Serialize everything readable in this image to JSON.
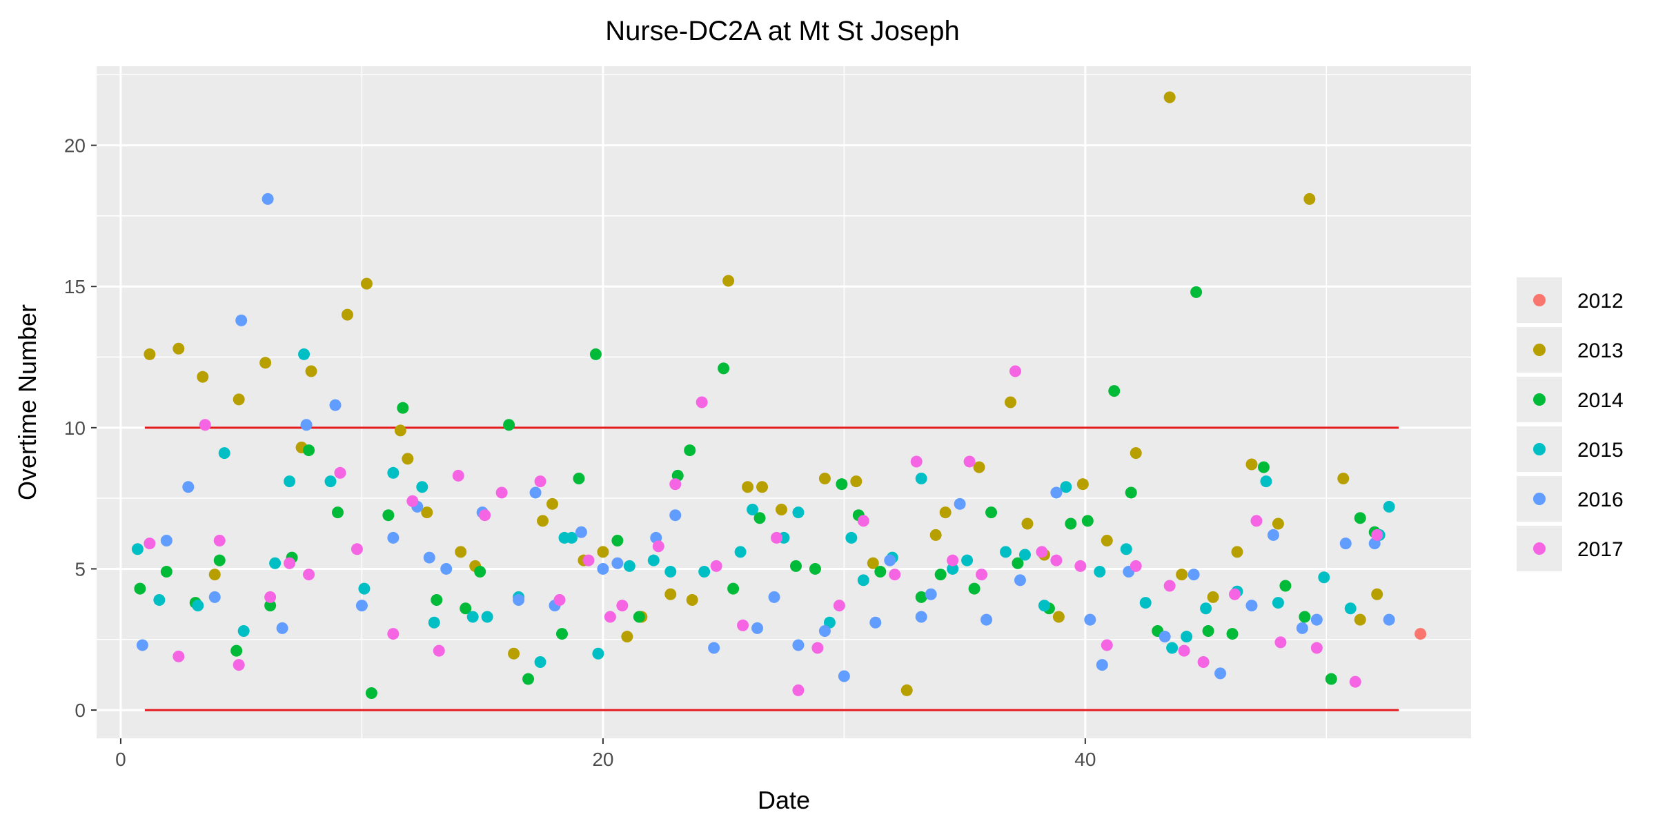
{
  "chart_data": {
    "type": "scatter",
    "title": "Nurse-DC2A at Mt St Joseph",
    "xlabel": "Date",
    "ylabel": "Overtime Number",
    "xlim": [
      -1,
      56
    ],
    "ylim": [
      -1,
      22.8
    ],
    "xticks": [
      0,
      20,
      40
    ],
    "yticks": [
      0,
      5,
      10,
      15,
      20
    ],
    "grid": true,
    "legend_position": "right",
    "control_limits": [
      {
        "y": 10,
        "x_start": 1,
        "x_end": 53,
        "color": "#e41a1c"
      },
      {
        "y": 0,
        "x_start": 1,
        "x_end": 53,
        "color": "#e41a1c"
      }
    ],
    "series": [
      {
        "name": "2012",
        "color": "#F8766D",
        "points": [
          [
            53.9,
            2.7
          ]
        ]
      },
      {
        "name": "2013",
        "color": "#B79F00",
        "points": [
          [
            1.2,
            12.6
          ],
          [
            2.4,
            12.8
          ],
          [
            3.4,
            11.8
          ],
          [
            3.9,
            4.8
          ],
          [
            4.9,
            11.0
          ],
          [
            6.0,
            12.3
          ],
          [
            7.5,
            9.3
          ],
          [
            7.9,
            12.0
          ],
          [
            9.4,
            14.0
          ],
          [
            10.2,
            15.1
          ],
          [
            11.6,
            9.9
          ],
          [
            11.9,
            8.9
          ],
          [
            12.7,
            7.0
          ],
          [
            14.1,
            5.6
          ],
          [
            14.7,
            5.1
          ],
          [
            16.3,
            2.0
          ],
          [
            17.5,
            6.7
          ],
          [
            17.9,
            7.3
          ],
          [
            19.2,
            5.3
          ],
          [
            20.0,
            5.6
          ],
          [
            21.0,
            2.6
          ],
          [
            21.6,
            3.3
          ],
          [
            22.8,
            4.1
          ],
          [
            23.7,
            3.9
          ],
          [
            25.2,
            15.2
          ],
          [
            26.0,
            7.9
          ],
          [
            26.6,
            7.9
          ],
          [
            27.4,
            7.1
          ],
          [
            29.2,
            8.2
          ],
          [
            30.5,
            8.1
          ],
          [
            31.2,
            5.2
          ],
          [
            32.6,
            0.7
          ],
          [
            33.8,
            6.2
          ],
          [
            34.2,
            7.0
          ],
          [
            35.6,
            8.6
          ],
          [
            36.9,
            10.9
          ],
          [
            37.6,
            6.6
          ],
          [
            38.3,
            5.5
          ],
          [
            38.9,
            3.3
          ],
          [
            39.9,
            8.0
          ],
          [
            40.9,
            6.0
          ],
          [
            42.1,
            9.1
          ],
          [
            43.5,
            21.7
          ],
          [
            44.0,
            4.8
          ],
          [
            45.3,
            4.0
          ],
          [
            46.3,
            5.6
          ],
          [
            46.9,
            8.7
          ],
          [
            48.0,
            6.6
          ],
          [
            49.3,
            18.1
          ],
          [
            50.7,
            8.2
          ],
          [
            51.4,
            3.2
          ],
          [
            52.1,
            4.1
          ]
        ]
      },
      {
        "name": "2014",
        "color": "#00BA38",
        "points": [
          [
            0.8,
            4.3
          ],
          [
            1.9,
            4.9
          ],
          [
            3.1,
            3.8
          ],
          [
            4.1,
            5.3
          ],
          [
            4.8,
            2.1
          ],
          [
            6.2,
            3.7
          ],
          [
            7.1,
            5.4
          ],
          [
            7.8,
            9.2
          ],
          [
            9.0,
            7.0
          ],
          [
            10.4,
            0.6
          ],
          [
            11.1,
            6.9
          ],
          [
            11.7,
            10.7
          ],
          [
            13.1,
            3.9
          ],
          [
            14.3,
            3.6
          ],
          [
            14.9,
            4.9
          ],
          [
            16.1,
            10.1
          ],
          [
            16.9,
            1.1
          ],
          [
            18.3,
            2.7
          ],
          [
            19.0,
            8.2
          ],
          [
            19.7,
            12.6
          ],
          [
            20.6,
            6.0
          ],
          [
            21.5,
            3.3
          ],
          [
            23.1,
            8.3
          ],
          [
            23.6,
            9.2
          ],
          [
            25.0,
            12.1
          ],
          [
            25.4,
            4.3
          ],
          [
            26.5,
            6.8
          ],
          [
            28.0,
            5.1
          ],
          [
            28.8,
            5.0
          ],
          [
            29.9,
            8.0
          ],
          [
            30.6,
            6.9
          ],
          [
            31.5,
            4.9
          ],
          [
            33.2,
            4.0
          ],
          [
            34.0,
            4.8
          ],
          [
            35.4,
            4.3
          ],
          [
            36.1,
            7.0
          ],
          [
            37.2,
            5.2
          ],
          [
            38.5,
            3.6
          ],
          [
            39.4,
            6.6
          ],
          [
            40.1,
            6.7
          ],
          [
            41.2,
            11.3
          ],
          [
            41.9,
            7.7
          ],
          [
            43.0,
            2.8
          ],
          [
            44.6,
            14.8
          ],
          [
            45.1,
            2.8
          ],
          [
            46.1,
            2.7
          ],
          [
            47.4,
            8.6
          ],
          [
            48.3,
            4.4
          ],
          [
            49.1,
            3.3
          ],
          [
            50.2,
            1.1
          ],
          [
            51.4,
            6.8
          ],
          [
            52.0,
            6.3
          ]
        ]
      },
      {
        "name": "2015",
        "color": "#00BFC4",
        "points": [
          [
            0.7,
            5.7
          ],
          [
            1.6,
            3.9
          ],
          [
            3.2,
            3.7
          ],
          [
            4.3,
            9.1
          ],
          [
            5.1,
            2.8
          ],
          [
            6.4,
            5.2
          ],
          [
            7.0,
            8.1
          ],
          [
            7.6,
            12.6
          ],
          [
            8.7,
            8.1
          ],
          [
            10.1,
            4.3
          ],
          [
            11.3,
            8.4
          ],
          [
            12.5,
            7.9
          ],
          [
            13.0,
            3.1
          ],
          [
            14.6,
            3.3
          ],
          [
            15.2,
            3.3
          ],
          [
            16.5,
            4.0
          ],
          [
            17.4,
            1.7
          ],
          [
            18.4,
            6.1
          ],
          [
            18.7,
            6.1
          ],
          [
            19.8,
            2.0
          ],
          [
            21.1,
            5.1
          ],
          [
            22.1,
            5.3
          ],
          [
            22.8,
            4.9
          ],
          [
            24.2,
            4.9
          ],
          [
            25.7,
            5.6
          ],
          [
            26.2,
            7.1
          ],
          [
            27.5,
            6.1
          ],
          [
            28.1,
            7.0
          ],
          [
            29.4,
            3.1
          ],
          [
            30.3,
            6.1
          ],
          [
            30.8,
            4.6
          ],
          [
            32.0,
            5.4
          ],
          [
            33.2,
            8.2
          ],
          [
            34.5,
            5.0
          ],
          [
            35.1,
            5.3
          ],
          [
            36.7,
            5.6
          ],
          [
            37.5,
            5.5
          ],
          [
            38.3,
            3.7
          ],
          [
            39.2,
            7.9
          ],
          [
            40.6,
            4.9
          ],
          [
            41.7,
            5.7
          ],
          [
            42.5,
            3.8
          ],
          [
            43.6,
            2.2
          ],
          [
            44.2,
            2.6
          ],
          [
            45.0,
            3.6
          ],
          [
            46.3,
            4.2
          ],
          [
            47.5,
            8.1
          ],
          [
            48.0,
            3.8
          ],
          [
            49.9,
            4.7
          ],
          [
            51.0,
            3.6
          ],
          [
            52.2,
            6.2
          ],
          [
            52.6,
            7.2
          ]
        ]
      },
      {
        "name": "2016",
        "color": "#619CFF",
        "points": [
          [
            0.9,
            2.3
          ],
          [
            1.9,
            6.0
          ],
          [
            2.8,
            7.9
          ],
          [
            3.9,
            4.0
          ],
          [
            5.0,
            13.8
          ],
          [
            6.1,
            18.1
          ],
          [
            6.7,
            2.9
          ],
          [
            7.7,
            10.1
          ],
          [
            8.9,
            10.8
          ],
          [
            10.0,
            3.7
          ],
          [
            11.3,
            6.1
          ],
          [
            12.3,
            7.2
          ],
          [
            12.8,
            5.4
          ],
          [
            13.5,
            5.0
          ],
          [
            15.0,
            7.0
          ],
          [
            16.5,
            3.9
          ],
          [
            17.2,
            7.7
          ],
          [
            18.0,
            3.7
          ],
          [
            19.1,
            6.3
          ],
          [
            20.0,
            5.0
          ],
          [
            20.6,
            5.2
          ],
          [
            22.2,
            6.1
          ],
          [
            23.0,
            6.9
          ],
          [
            24.6,
            2.2
          ],
          [
            26.4,
            2.9
          ],
          [
            27.1,
            4.0
          ],
          [
            28.1,
            2.3
          ],
          [
            29.2,
            2.8
          ],
          [
            30.0,
            1.2
          ],
          [
            31.3,
            3.1
          ],
          [
            31.9,
            5.3
          ],
          [
            33.2,
            3.3
          ],
          [
            33.6,
            4.1
          ],
          [
            34.8,
            7.3
          ],
          [
            35.9,
            3.2
          ],
          [
            37.3,
            4.6
          ],
          [
            38.8,
            7.7
          ],
          [
            40.2,
            3.2
          ],
          [
            40.7,
            1.6
          ],
          [
            41.8,
            4.9
          ],
          [
            43.3,
            2.6
          ],
          [
            44.5,
            4.8
          ],
          [
            45.6,
            1.3
          ],
          [
            46.9,
            3.7
          ],
          [
            47.8,
            6.2
          ],
          [
            49.0,
            2.9
          ],
          [
            49.6,
            3.2
          ],
          [
            50.8,
            5.9
          ],
          [
            52.0,
            5.9
          ],
          [
            52.6,
            3.2
          ]
        ]
      },
      {
        "name": "2017",
        "color": "#F564E3",
        "points": [
          [
            1.2,
            5.9
          ],
          [
            2.4,
            1.9
          ],
          [
            3.5,
            10.1
          ],
          [
            4.1,
            6.0
          ],
          [
            4.9,
            1.6
          ],
          [
            6.2,
            4.0
          ],
          [
            7.0,
            5.2
          ],
          [
            7.8,
            4.8
          ],
          [
            9.1,
            8.4
          ],
          [
            9.8,
            5.7
          ],
          [
            11.3,
            2.7
          ],
          [
            12.1,
            7.4
          ],
          [
            13.2,
            2.1
          ],
          [
            14.0,
            8.3
          ],
          [
            15.1,
            6.9
          ],
          [
            15.8,
            7.7
          ],
          [
            17.4,
            8.1
          ],
          [
            18.2,
            3.9
          ],
          [
            19.4,
            5.3
          ],
          [
            20.3,
            3.3
          ],
          [
            20.8,
            3.7
          ],
          [
            22.3,
            5.8
          ],
          [
            23.0,
            8.0
          ],
          [
            24.1,
            10.9
          ],
          [
            24.7,
            5.1
          ],
          [
            25.8,
            3.0
          ],
          [
            27.2,
            6.1
          ],
          [
            28.1,
            0.7
          ],
          [
            28.9,
            2.2
          ],
          [
            29.8,
            3.7
          ],
          [
            30.8,
            6.7
          ],
          [
            32.1,
            4.8
          ],
          [
            33.0,
            8.8
          ],
          [
            34.5,
            5.3
          ],
          [
            35.2,
            8.8
          ],
          [
            35.7,
            4.8
          ],
          [
            37.1,
            12.0
          ],
          [
            38.2,
            5.6
          ],
          [
            38.8,
            5.3
          ],
          [
            39.8,
            5.1
          ],
          [
            40.9,
            2.3
          ],
          [
            42.1,
            5.1
          ],
          [
            43.5,
            4.4
          ],
          [
            44.1,
            2.1
          ],
          [
            44.9,
            1.7
          ],
          [
            46.2,
            4.1
          ],
          [
            47.1,
            6.7
          ],
          [
            48.1,
            2.4
          ],
          [
            49.6,
            2.2
          ],
          [
            51.2,
            1.0
          ],
          [
            52.1,
            6.2
          ]
        ]
      }
    ]
  }
}
